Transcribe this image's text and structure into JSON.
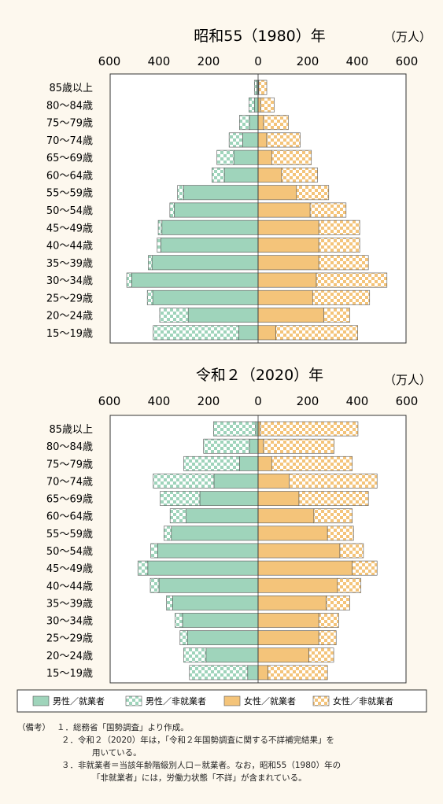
{
  "chart_data": [
    {
      "type": "bar",
      "subtype": "population-pyramid",
      "title": "昭和55（1980）年",
      "unit": "（万人）",
      "tick_labels": [
        "600",
        "400",
        "200",
        "0",
        "200",
        "400",
        "600"
      ],
      "xlim": [
        -600,
        600
      ],
      "categories": [
        "85歳以上",
        "80～84歳",
        "75～79歳",
        "70～74歳",
        "65～69歳",
        "60～64歳",
        "55～59歳",
        "50～54歳",
        "45～49歳",
        "40～44歳",
        "35～39歳",
        "30～34歳",
        "25～29歳",
        "20～24歳",
        "15～19歳"
      ],
      "series": [
        {
          "name": "男性／就業者",
          "side": "left",
          "values": [
            5,
            15,
            35,
            62,
            98,
            136,
            300,
            338,
            388,
            392,
            428,
            510,
            425,
            282,
            78
          ]
        },
        {
          "name": "男性／非就業者",
          "side": "left",
          "values": [
            10,
            22,
            40,
            55,
            68,
            50,
            25,
            18,
            15,
            15,
            15,
            20,
            22,
            115,
            345
          ]
        },
        {
          "name": "女性／就業者",
          "side": "right",
          "values": [
            3,
            10,
            22,
            35,
            55,
            95,
            155,
            210,
            245,
            245,
            245,
            235,
            220,
            265,
            72
          ]
        },
        {
          "name": "女性／非就業者",
          "side": "right",
          "values": [
            32,
            55,
            100,
            135,
            160,
            145,
            130,
            145,
            165,
            165,
            200,
            285,
            230,
            105,
            330
          ]
        }
      ]
    },
    {
      "type": "bar",
      "subtype": "population-pyramid",
      "title": "令和２（2020）年",
      "unit": "（万人）",
      "tick_labels": [
        "600",
        "400",
        "200",
        "0",
        "200",
        "400",
        "600"
      ],
      "xlim": [
        -600,
        600
      ],
      "categories": [
        "85歳以上",
        "80～84歳",
        "75～79歳",
        "70～74歳",
        "65～69歳",
        "60～64歳",
        "55～59歳",
        "50～54歳",
        "45～49歳",
        "40～44歳",
        "35～39歳",
        "30～34歳",
        "25～29歳",
        "20～24歳",
        "15～19歳"
      ],
      "series": [
        {
          "name": "男性／就業者",
          "side": "left",
          "values": [
            10,
            35,
            75,
            178,
            235,
            290,
            350,
            405,
            445,
            400,
            345,
            305,
            285,
            210,
            42
          ]
        },
        {
          "name": "男性／非就業者",
          "side": "left",
          "values": [
            170,
            185,
            225,
            245,
            160,
            65,
            30,
            28,
            40,
            35,
            25,
            30,
            30,
            90,
            235
          ]
        },
        {
          "name": "女性／就業者",
          "side": "right",
          "values": [
            8,
            22,
            55,
            125,
            165,
            225,
            280,
            330,
            380,
            320,
            275,
            245,
            245,
            205,
            40
          ]
        },
        {
          "name": "女性／非就業者",
          "side": "right",
          "values": [
            395,
            285,
            325,
            355,
            280,
            155,
            105,
            95,
            100,
            95,
            95,
            80,
            70,
            100,
            240
          ]
        }
      ]
    }
  ],
  "legend": [
    {
      "label": "男性／就業者",
      "pattern": "solid-green"
    },
    {
      "label": "男性／非就業者",
      "pattern": "check-green"
    },
    {
      "label": "女性／就業者",
      "pattern": "solid-orange"
    },
    {
      "label": "女性／非就業者",
      "pattern": "check-orange"
    }
  ],
  "colors": {
    "male": "#9fd4bb",
    "female": "#f4c47a",
    "background": "#fdf8ee",
    "plot_bg": "#ffffff"
  },
  "notes": {
    "head": "（備考）",
    "items": [
      {
        "line1": "１．総務省「国勢調査」より作成。"
      },
      {
        "line1": "２．令和２（2020）年は，「令和２年国勢調査に関する不詳補完結果」を",
        "line2": "用いている。"
      },
      {
        "line1": "３．非就業者＝当該年齢階級別人口－就業者。なお，昭和55（1980）年の",
        "line2": "「非就業者」には，労働力状態「不詳」が含まれている。"
      }
    ]
  }
}
